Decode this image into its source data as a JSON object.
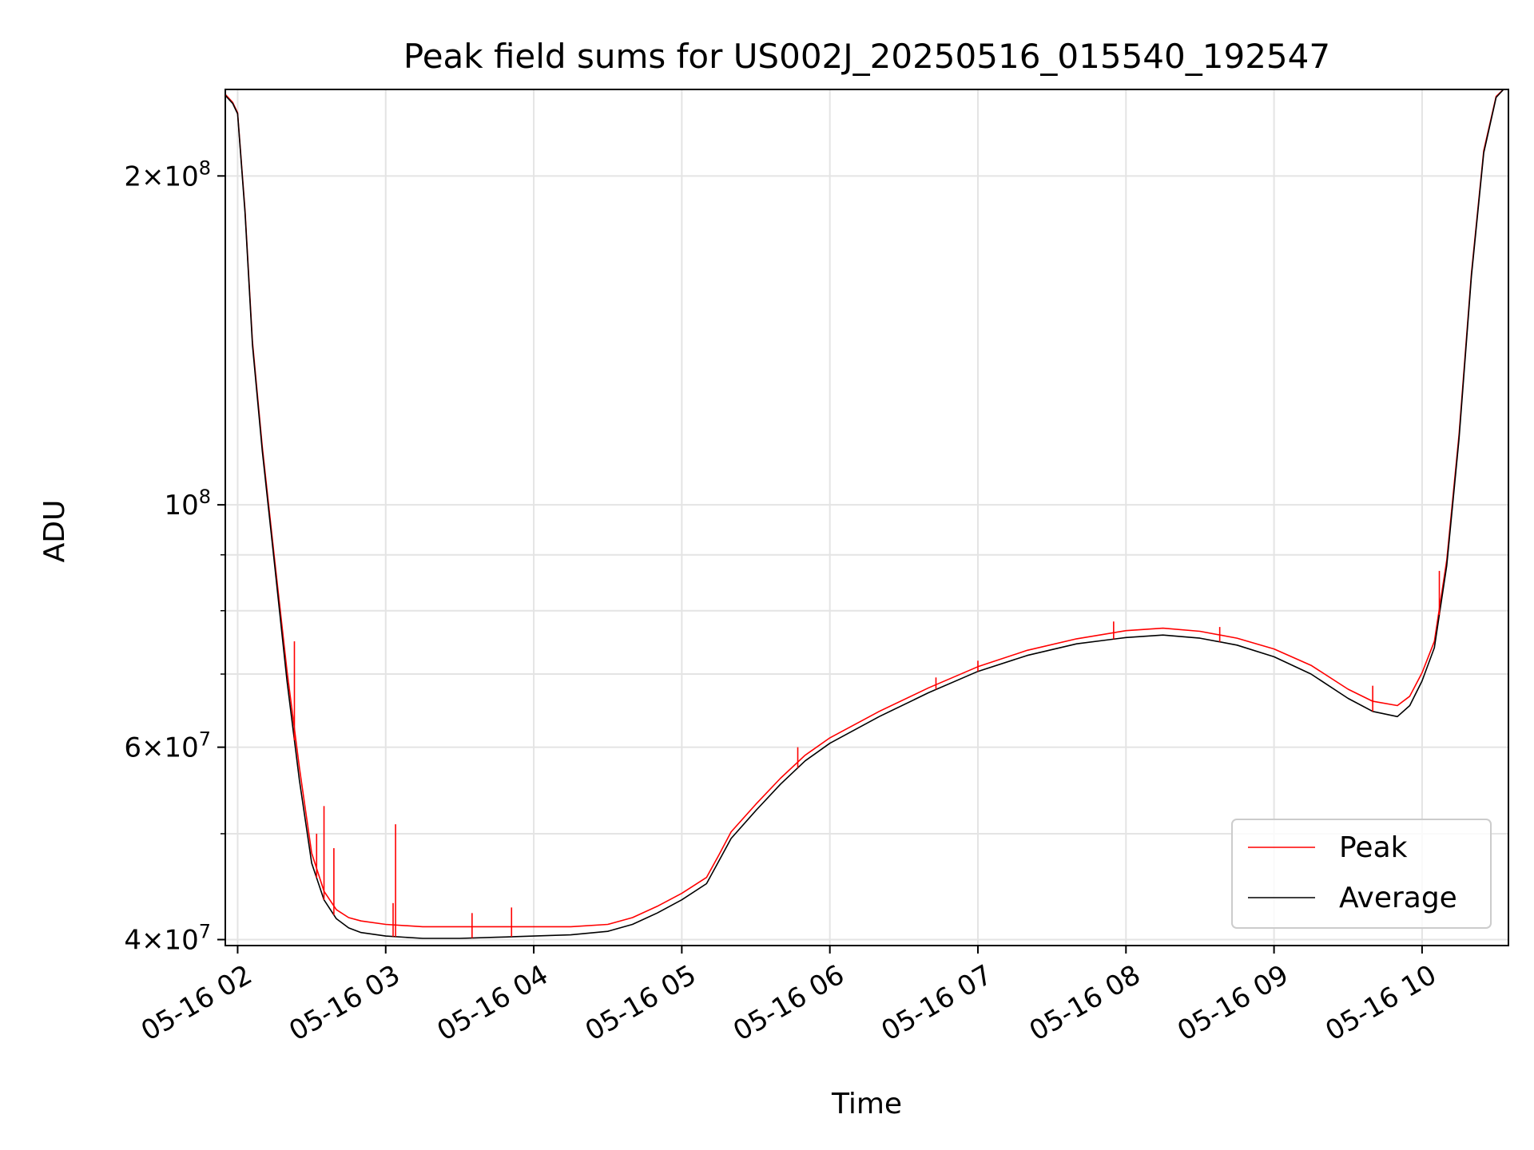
{
  "chart_data": {
    "type": "line",
    "title": "Peak field sums for US002J_20250516_015540_192547",
    "xlabel": "Time",
    "ylabel": "ADU",
    "y_scale": "log",
    "grid": true,
    "legend_position": "lower right",
    "xlim": [
      "2025-05-16 01:55",
      "2025-05-16 10:35"
    ],
    "ylim": [
      39500000,
      240000000
    ],
    "x_ticks": [
      {
        "value": "2025-05-16 02:00",
        "label": "05-16 02"
      },
      {
        "value": "2025-05-16 03:00",
        "label": "05-16 03"
      },
      {
        "value": "2025-05-16 04:00",
        "label": "05-16 04"
      },
      {
        "value": "2025-05-16 05:00",
        "label": "05-16 05"
      },
      {
        "value": "2025-05-16 06:00",
        "label": "05-16 06"
      },
      {
        "value": "2025-05-16 07:00",
        "label": "05-16 07"
      },
      {
        "value": "2025-05-16 08:00",
        "label": "05-16 08"
      },
      {
        "value": "2025-05-16 09:00",
        "label": "05-16 09"
      },
      {
        "value": "2025-05-16 10:00",
        "label": "05-16 10"
      }
    ],
    "y_major_ticks": [
      {
        "value": 40000000,
        "mantissa": "4",
        "exponent": "7"
      },
      {
        "value": 60000000,
        "mantissa": "6",
        "exponent": "7"
      },
      {
        "value": 100000000,
        "mantissa": "",
        "exponent": "8"
      },
      {
        "value": 200000000,
        "mantissa": "2",
        "exponent": "8"
      }
    ],
    "y_minor_ticks": [
      50000000,
      70000000,
      80000000,
      90000000
    ],
    "series": [
      {
        "name": "Average",
        "color": "#000000",
        "x": [
          "2025-05-16 01:55",
          "2025-05-16 01:58",
          "2025-05-16 02:00",
          "2025-05-16 02:03",
          "2025-05-16 02:06",
          "2025-05-16 02:10",
          "2025-05-16 02:15",
          "2025-05-16 02:20",
          "2025-05-16 02:25",
          "2025-05-16 02:30",
          "2025-05-16 02:35",
          "2025-05-16 02:40",
          "2025-05-16 02:45",
          "2025-05-16 02:50",
          "2025-05-16 03:00",
          "2025-05-16 03:15",
          "2025-05-16 03:30",
          "2025-05-16 03:45",
          "2025-05-16 04:00",
          "2025-05-16 04:15",
          "2025-05-16 04:30",
          "2025-05-16 04:40",
          "2025-05-16 04:50",
          "2025-05-16 05:00",
          "2025-05-16 05:10",
          "2025-05-16 05:15",
          "2025-05-16 05:20",
          "2025-05-16 05:30",
          "2025-05-16 05:40",
          "2025-05-16 05:50",
          "2025-05-16 06:00",
          "2025-05-16 06:20",
          "2025-05-16 06:40",
          "2025-05-16 07:00",
          "2025-05-16 07:20",
          "2025-05-16 07:40",
          "2025-05-16 08:00",
          "2025-05-16 08:15",
          "2025-05-16 08:30",
          "2025-05-16 08:45",
          "2025-05-16 09:00",
          "2025-05-16 09:15",
          "2025-05-16 09:30",
          "2025-05-16 09:40",
          "2025-05-16 09:50",
          "2025-05-16 09:55",
          "2025-05-16 10:00",
          "2025-05-16 10:05",
          "2025-05-16 10:10",
          "2025-05-16 10:15",
          "2025-05-16 10:20",
          "2025-05-16 10:25",
          "2025-05-16 10:30",
          "2025-05-16 10:33"
        ],
        "values": [
          237000000,
          233000000,
          228000000,
          185000000,
          140000000,
          112000000,
          88000000,
          69000000,
          56000000,
          47000000,
          43500000,
          41800000,
          41000000,
          40600000,
          40300000,
          40100000,
          40100000,
          40200000,
          40300000,
          40400000,
          40700000,
          41300000,
          42300000,
          43500000,
          45000000,
          47200000,
          49500000,
          52500000,
          55500000,
          58300000,
          60500000,
          64000000,
          67300000,
          70400000,
          72800000,
          74600000,
          75600000,
          76000000,
          75500000,
          74400000,
          72600000,
          70000000,
          66500000,
          64700000,
          64000000,
          65500000,
          69000000,
          74000000,
          88000000,
          115000000,
          162000000,
          210000000,
          236000000,
          240000000
        ]
      },
      {
        "name": "Peak",
        "color": "#ff0000",
        "x": [
          "2025-05-16 01:55",
          "2025-05-16 01:58",
          "2025-05-16 02:00",
          "2025-05-16 02:03",
          "2025-05-16 02:06",
          "2025-05-16 02:10",
          "2025-05-16 02:15",
          "2025-05-16 02:20",
          "2025-05-16 02:25",
          "2025-05-16 02:30",
          "2025-05-16 02:35",
          "2025-05-16 02:40",
          "2025-05-16 02:45",
          "2025-05-16 02:50",
          "2025-05-16 03:00",
          "2025-05-16 03:15",
          "2025-05-16 03:30",
          "2025-05-16 03:45",
          "2025-05-16 04:00",
          "2025-05-16 04:15",
          "2025-05-16 04:30",
          "2025-05-16 04:40",
          "2025-05-16 04:50",
          "2025-05-16 05:00",
          "2025-05-16 05:10",
          "2025-05-16 05:15",
          "2025-05-16 05:20",
          "2025-05-16 05:30",
          "2025-05-16 05:40",
          "2025-05-16 05:50",
          "2025-05-16 06:00",
          "2025-05-16 06:20",
          "2025-05-16 06:40",
          "2025-05-16 07:00",
          "2025-05-16 07:20",
          "2025-05-16 07:40",
          "2025-05-16 08:00",
          "2025-05-16 08:15",
          "2025-05-16 08:30",
          "2025-05-16 08:45",
          "2025-05-16 09:00",
          "2025-05-16 09:15",
          "2025-05-16 09:30",
          "2025-05-16 09:40",
          "2025-05-16 09:50",
          "2025-05-16 09:55",
          "2025-05-16 10:00",
          "2025-05-16 10:05",
          "2025-05-16 10:10",
          "2025-05-16 10:15",
          "2025-05-16 10:20",
          "2025-05-16 10:25",
          "2025-05-16 10:30",
          "2025-05-16 10:33"
        ],
        "values": [
          237500000,
          233500000,
          228500000,
          186000000,
          141000000,
          113000000,
          89000000,
          70500000,
          57500000,
          48000000,
          44300000,
          42600000,
          41900000,
          41600000,
          41300000,
          41100000,
          41100000,
          41100000,
          41100000,
          41100000,
          41300000,
          41900000,
          42900000,
          44100000,
          45600000,
          47800000,
          50200000,
          53200000,
          56200000,
          59000000,
          61200000,
          64700000,
          68000000,
          71100000,
          73600000,
          75400000,
          76700000,
          77100000,
          76600000,
          75500000,
          73800000,
          71300000,
          67800000,
          66100000,
          65500000,
          66800000,
          70200000,
          75000000,
          89000000,
          116000000,
          163000000,
          211000000,
          236500000,
          240500000
        ]
      }
    ],
    "peak_spikes": [
      {
        "x": "2025-05-16 02:23",
        "y": 75000000
      },
      {
        "x": "2025-05-16 02:32",
        "y": 50000000
      },
      {
        "x": "2025-05-16 02:35",
        "y": 53000000
      },
      {
        "x": "2025-05-16 02:39",
        "y": 48500000
      },
      {
        "x": "2025-05-16 03:04",
        "y": 51000000
      },
      {
        "x": "2025-05-16 03:03",
        "y": 43200000
      },
      {
        "x": "2025-05-16 03:35",
        "y": 42300000
      },
      {
        "x": "2025-05-16 03:51",
        "y": 42800000
      },
      {
        "x": "2025-05-16 05:47",
        "y": 60000000
      },
      {
        "x": "2025-05-16 06:43",
        "y": 69500000
      },
      {
        "x": "2025-05-16 07:00",
        "y": 72000000
      },
      {
        "x": "2025-05-16 07:55",
        "y": 78200000
      },
      {
        "x": "2025-05-16 08:38",
        "y": 77300000
      },
      {
        "x": "2025-05-16 09:40",
        "y": 68300000
      },
      {
        "x": "2025-05-16 10:07",
        "y": 87000000
      }
    ]
  }
}
